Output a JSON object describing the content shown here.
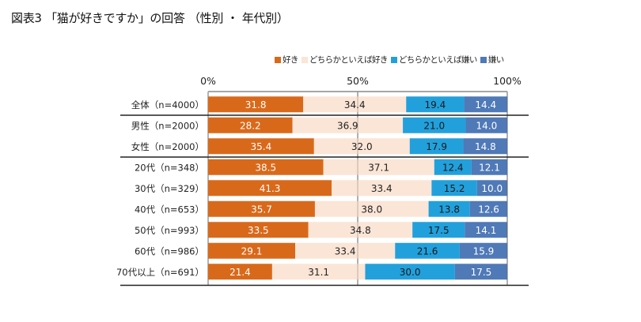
{
  "chart_data": {
    "type": "bar",
    "orientation": "horizontal",
    "stacked": true,
    "percent": true,
    "title": "図表3 「猫が好きですか」の回答 （性別 ・ 年代別）",
    "xlabel": "",
    "ylabel": "",
    "xlim": [
      0,
      100
    ],
    "xticks": [
      "0%",
      "50%",
      "100%"
    ],
    "xtick_values": [
      0,
      50,
      100
    ],
    "grid": true,
    "legend_position": "top-right",
    "categories": [
      "全体（n=4000）",
      "男性（n=2000）",
      "女性（n=2000）",
      "20代（n=348）",
      "30代（n=329）",
      "40代（n=653）",
      "50代（n=993）",
      "60代（n=986）",
      "70代以上（n=691）"
    ],
    "group_separators_after": [
      0,
      2
    ],
    "series": [
      {
        "name": "好き",
        "color": "#d9691a",
        "label_color": "#ffffff",
        "values": [
          31.8,
          28.2,
          35.4,
          38.5,
          41.3,
          35.7,
          33.5,
          29.1,
          21.4
        ]
      },
      {
        "name": "どちらかといえば好き",
        "color": "#fbe5d6",
        "label_color": "#222222",
        "values": [
          34.4,
          36.9,
          32.0,
          37.1,
          33.4,
          38.0,
          34.8,
          33.4,
          31.1
        ]
      },
      {
        "name": "どちらかといえば嫌い",
        "color": "#22a0dc",
        "label_color": "#1a1a1a",
        "values": [
          19.4,
          21.0,
          17.9,
          12.4,
          15.2,
          13.8,
          17.5,
          21.6,
          30.0
        ]
      },
      {
        "name": "嫌い",
        "color": "#4f79b7",
        "label_color": "#ffffff",
        "values": [
          14.4,
          14.0,
          14.8,
          12.1,
          10.0,
          12.6,
          14.1,
          15.9,
          17.5
        ]
      }
    ]
  }
}
